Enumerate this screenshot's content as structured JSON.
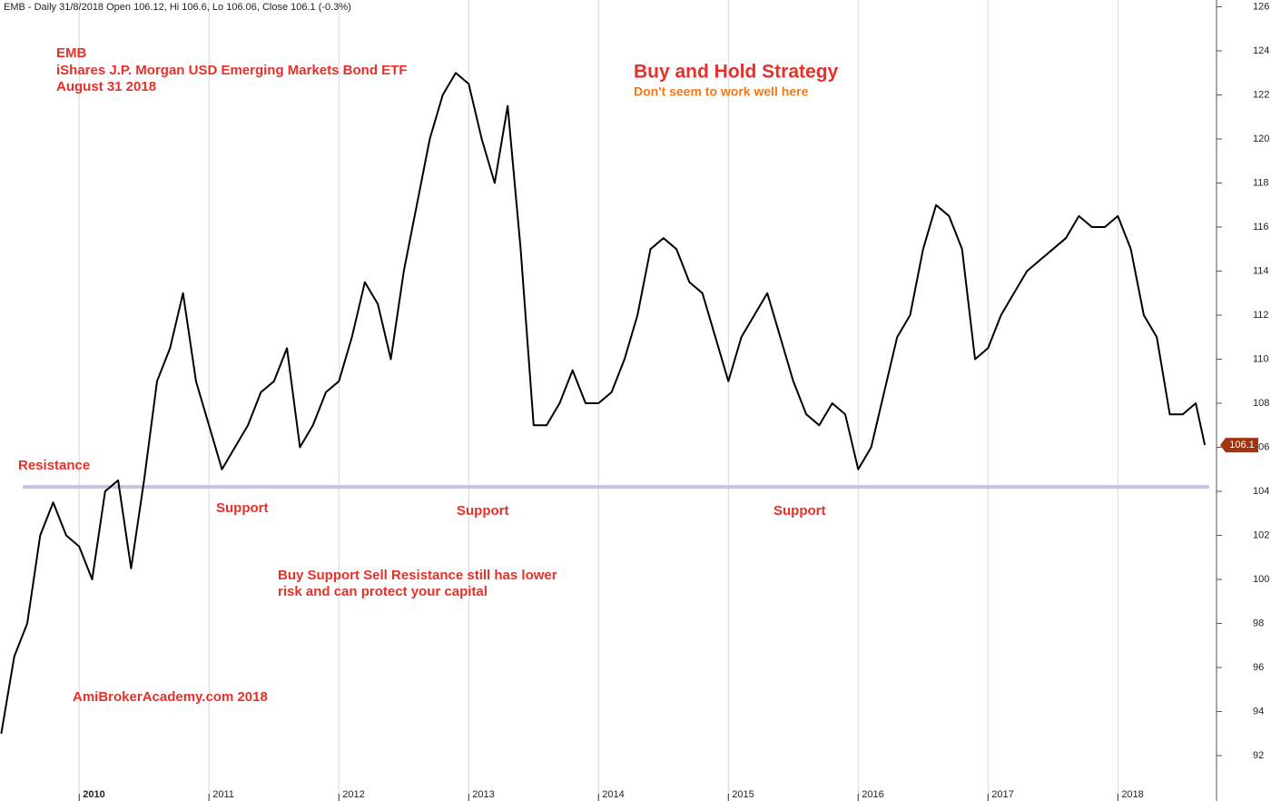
{
  "chart_data": {
    "type": "line",
    "header": "EMB - Daily 31/8/2018 Open 106.12, Hi 106.6, Lo 106.06, Close 106.1 (-0.3%)",
    "title_lines": [
      "EMB",
      "iShares J.P. Morgan USD Emerging Markets Bond ETF",
      "August 31 2018"
    ],
    "headline": "Buy and Hold Strategy",
    "subheadline": "Don't seem to work well here",
    "annotations": [
      "Resistance",
      "Support",
      "Support",
      "Support",
      "Buy Support Sell Resistance still has lower",
      "risk and can protect your capital",
      "AmiBrokerAcademy.com  2018"
    ],
    "last_price": 106.1,
    "support_level": 104.2,
    "support_color": "#c9c3e3",
    "color": "#000000",
    "grid": true,
    "xlim": [
      2009.39,
      2018.76
    ],
    "xticks": [
      2010,
      2011,
      2012,
      2013,
      2014,
      2015,
      2016,
      2017,
      2018
    ],
    "ylim": [
      89.94,
      126.31
    ],
    "yticks": [
      92,
      94,
      96,
      98,
      100,
      102,
      104,
      106,
      108,
      110,
      112,
      114,
      116,
      118,
      120,
      122,
      124,
      126
    ],
    "x": [
      2009.4,
      2009.5,
      2009.6,
      2009.7,
      2009.8,
      2009.9,
      2010.0,
      2010.1,
      2010.2,
      2010.3,
      2010.4,
      2010.5,
      2010.6,
      2010.7,
      2010.8,
      2010.9,
      2011.0,
      2011.1,
      2011.2,
      2011.3,
      2011.4,
      2011.5,
      2011.6,
      2011.7,
      2011.8,
      2011.9,
      2012.0,
      2012.1,
      2012.2,
      2012.3,
      2012.4,
      2012.5,
      2012.6,
      2012.7,
      2012.8,
      2012.9,
      2013.0,
      2013.1,
      2013.2,
      2013.3,
      2013.4,
      2013.5,
      2013.6,
      2013.7,
      2013.8,
      2013.9,
      2014.0,
      2014.1,
      2014.2,
      2014.3,
      2014.4,
      2014.5,
      2014.6,
      2014.7,
      2014.8,
      2014.9,
      2015.0,
      2015.1,
      2015.2,
      2015.3,
      2015.4,
      2015.5,
      2015.6,
      2015.7,
      2015.8,
      2015.9,
      2016.0,
      2016.1,
      2016.2,
      2016.3,
      2016.4,
      2016.5,
      2016.6,
      2016.7,
      2016.8,
      2016.9,
      2017.0,
      2017.1,
      2017.2,
      2017.3,
      2017.4,
      2017.5,
      2017.6,
      2017.7,
      2017.8,
      2017.9,
      2018.0,
      2018.1,
      2018.2,
      2018.3,
      2018.4,
      2018.5,
      2018.6,
      2018.67
    ],
    "values": [
      93,
      96.5,
      98,
      102,
      103.5,
      102,
      101.5,
      100,
      104,
      104.5,
      100.5,
      104.5,
      109,
      110.5,
      113,
      109,
      107,
      105,
      106,
      107,
      108.5,
      109,
      110.5,
      106,
      107,
      108.5,
      109,
      111,
      113.5,
      112.5,
      110,
      114,
      117,
      120,
      122,
      123,
      122.5,
      120,
      118,
      121.5,
      115,
      107,
      107,
      108,
      109.5,
      108,
      108,
      108.5,
      110,
      112,
      115,
      115.5,
      115,
      113.5,
      113,
      111,
      109,
      111,
      112,
      113,
      111,
      109,
      107.5,
      107,
      108,
      107.5,
      105,
      106,
      108.5,
      111,
      112,
      115,
      117,
      116.5,
      115,
      110,
      110.5,
      112,
      113,
      114,
      114.5,
      115,
      115.5,
      116.5,
      116,
      116,
      116.5,
      115,
      112,
      111,
      107.5,
      107.5,
      108,
      106.1
    ]
  }
}
